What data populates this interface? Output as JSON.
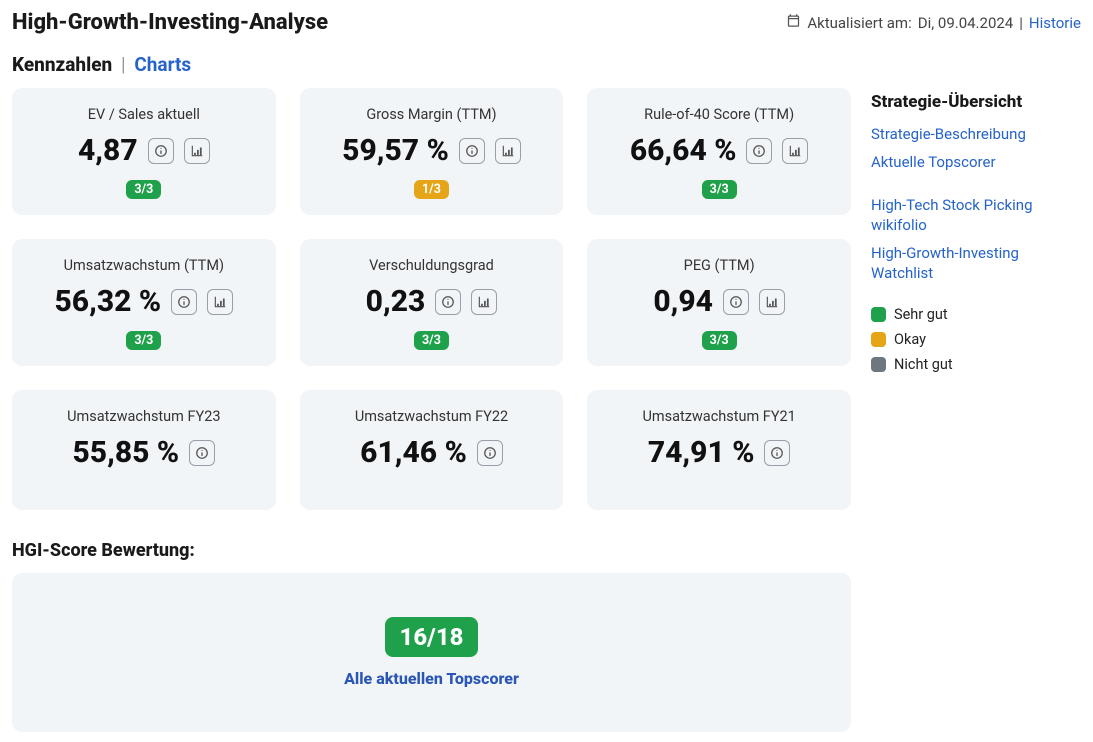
{
  "header": {
    "title": "High-Growth-Investing-Analyse",
    "updated_prefix": "Aktualisiert am:",
    "updated_date": "Di, 09.04.2024",
    "history_link": "Historie"
  },
  "tabs": {
    "active": "Kennzahlen",
    "inactive": "Charts"
  },
  "metrics": [
    {
      "label": "EV / Sales aktuell",
      "value": "4,87",
      "badge": "3/3",
      "badge_color": "green",
      "has_chart_btn": true
    },
    {
      "label": "Gross Margin (TTM)",
      "value": "59,57 %",
      "badge": "1/3",
      "badge_color": "amber",
      "has_chart_btn": true
    },
    {
      "label": "Rule-of-40 Score (TTM)",
      "value": "66,64 %",
      "badge": "3/3",
      "badge_color": "green",
      "has_chart_btn": true
    },
    {
      "label": "Umsatzwachstum (TTM)",
      "value": "56,32 %",
      "badge": "3/3",
      "badge_color": "green",
      "has_chart_btn": true
    },
    {
      "label": "Verschuldungsgrad",
      "value": "0,23",
      "badge": "3/3",
      "badge_color": "green",
      "has_chart_btn": true
    },
    {
      "label": "PEG (TTM)",
      "value": "0,94",
      "badge": "3/3",
      "badge_color": "green",
      "has_chart_btn": true
    },
    {
      "label": "Umsatzwachstum FY23",
      "value": "55,85 %",
      "badge": null,
      "badge_color": null,
      "has_chart_btn": false
    },
    {
      "label": "Umsatzwachstum FY22",
      "value": "61,46 %",
      "badge": null,
      "badge_color": null,
      "has_chart_btn": false
    },
    {
      "label": "Umsatzwachstum FY21",
      "value": "74,91 %",
      "badge": null,
      "badge_color": null,
      "has_chart_btn": false
    }
  ],
  "score_section": {
    "title": "HGI-Score Bewertung:",
    "score": "16/18",
    "link_text": "Alle aktuellen Topscorer"
  },
  "sidebar": {
    "title": "Strategie-Übersicht",
    "links_a": [
      "Strategie-Beschreibung",
      "Aktuelle Topscorer"
    ],
    "links_b": [
      "High-Tech Stock Picking wikifolio",
      "High-Growth-Investing Watchlist"
    ],
    "legend": [
      {
        "label": "Sehr gut",
        "color": "green"
      },
      {
        "label": "Okay",
        "color": "amber"
      },
      {
        "label": "Nicht gut",
        "color": "gray"
      }
    ]
  },
  "colors": {
    "card_bg": "#f2f5f8",
    "green": "#1fa04a",
    "amber": "#e6a417",
    "gray": "#6e7680",
    "link": "#2563c9"
  }
}
